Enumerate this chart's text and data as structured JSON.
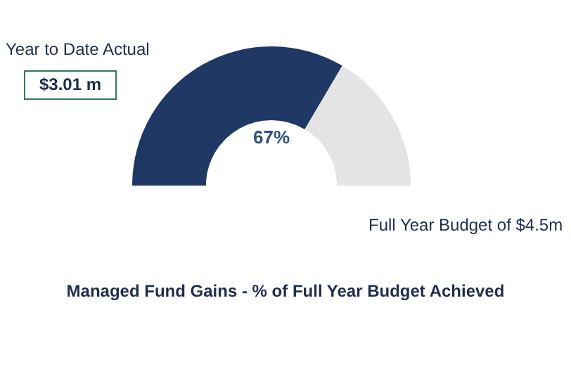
{
  "chart_data": {
    "type": "donut",
    "title": "Managed Fund Gains - % of Full Year Budget Achieved",
    "categories": [
      null,
      null
    ],
    "values": [
      67,
      33
    ],
    "colors": [
      "#1f3864",
      "#e4e4e4"
    ],
    "value_labels": [
      "67%",
      null
    ],
    "annotations": [
      "Year to Date Actual",
      "$3.01 m",
      "Full Year Budget of $4.5m"
    ],
    "legend": false
  }
}
